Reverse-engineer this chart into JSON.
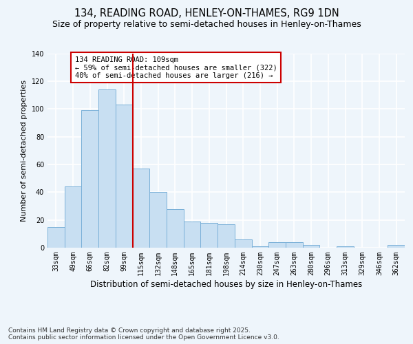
{
  "title1": "134, READING ROAD, HENLEY-ON-THAMES, RG9 1DN",
  "title2": "Size of property relative to semi-detached houses in Henley-on-Thames",
  "xlabel": "Distribution of semi-detached houses by size in Henley-on-Thames",
  "ylabel": "Number of semi-detached properties",
  "footer": "Contains HM Land Registry data © Crown copyright and database right 2025.\nContains public sector information licensed under the Open Government Licence v3.0.",
  "categories": [
    "33sqm",
    "49sqm",
    "66sqm",
    "82sqm",
    "99sqm",
    "115sqm",
    "132sqm",
    "148sqm",
    "165sqm",
    "181sqm",
    "198sqm",
    "214sqm",
    "230sqm",
    "247sqm",
    "263sqm",
    "280sqm",
    "296sqm",
    "313sqm",
    "329sqm",
    "346sqm",
    "362sqm"
  ],
  "values": [
    15,
    44,
    99,
    114,
    103,
    57,
    40,
    28,
    19,
    18,
    17,
    6,
    1,
    4,
    4,
    2,
    0,
    1,
    0,
    0,
    2
  ],
  "bar_color": "#c8dff2",
  "bar_edge_color": "#7ab0d8",
  "vline_x": 5,
  "vline_color": "#cc0000",
  "annotation_text": "134 READING ROAD: 109sqm\n← 59% of semi-detached houses are smaller (322)\n40% of semi-detached houses are larger (216) →",
  "annotation_box_color": "#ffffff",
  "annotation_box_edge": "#cc0000",
  "ylim": [
    0,
    140
  ],
  "yticks": [
    0,
    20,
    40,
    60,
    80,
    100,
    120,
    140
  ],
  "bg_color": "#eef5fb",
  "grid_color": "#ffffff",
  "title1_fontsize": 10.5,
  "title2_fontsize": 9,
  "xlabel_fontsize": 8.5,
  "ylabel_fontsize": 8,
  "tick_fontsize": 7,
  "footer_fontsize": 6.5,
  "ann_fontsize": 7.5
}
